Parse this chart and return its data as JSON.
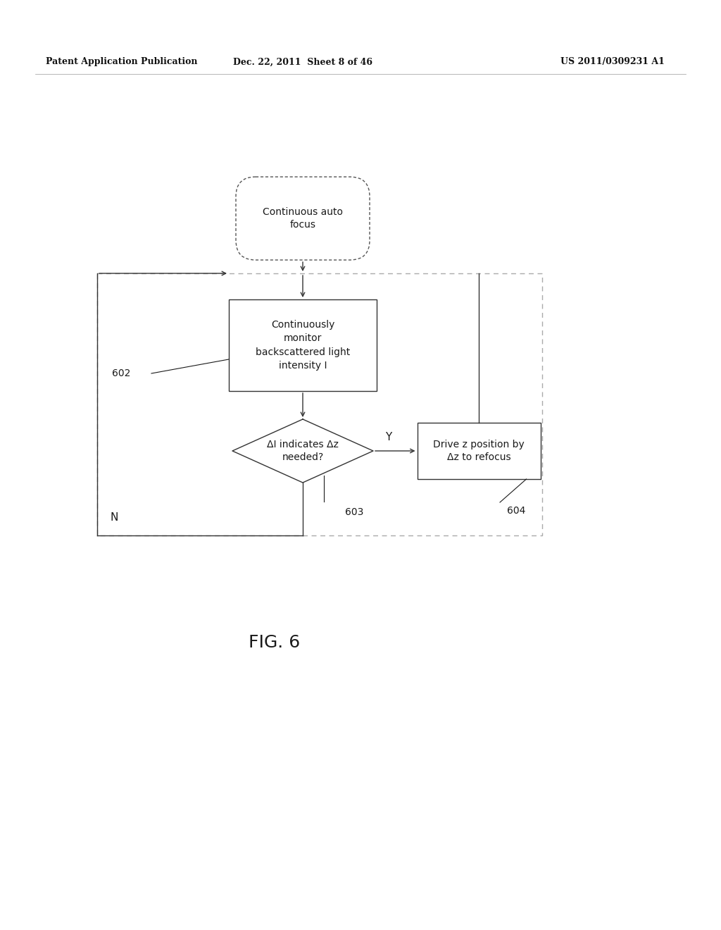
{
  "bg_color": "#ffffff",
  "header_left": "Patent Application Publication",
  "header_mid": "Dec. 22, 2011  Sheet 8 of 46",
  "header_right": "US 2011/0309231 A1",
  "fig_label": "FIG. 6",
  "node_start": "Continuous auto\nfocus",
  "node_602": "Continuously\nmonitor\nbackscattered light\nintensity I",
  "node_diamond": "ΔI indicates Δz\nneeded?",
  "node_604": "Drive z position by\nΔz to refocus",
  "label_602": "602",
  "label_603": "603",
  "label_604": "604",
  "label_Y": "Y",
  "label_N": "N",
  "line_color": "#333333",
  "text_color": "#1a1a1a",
  "dashed_color": "#aaaaaa",
  "header_color": "#111111"
}
